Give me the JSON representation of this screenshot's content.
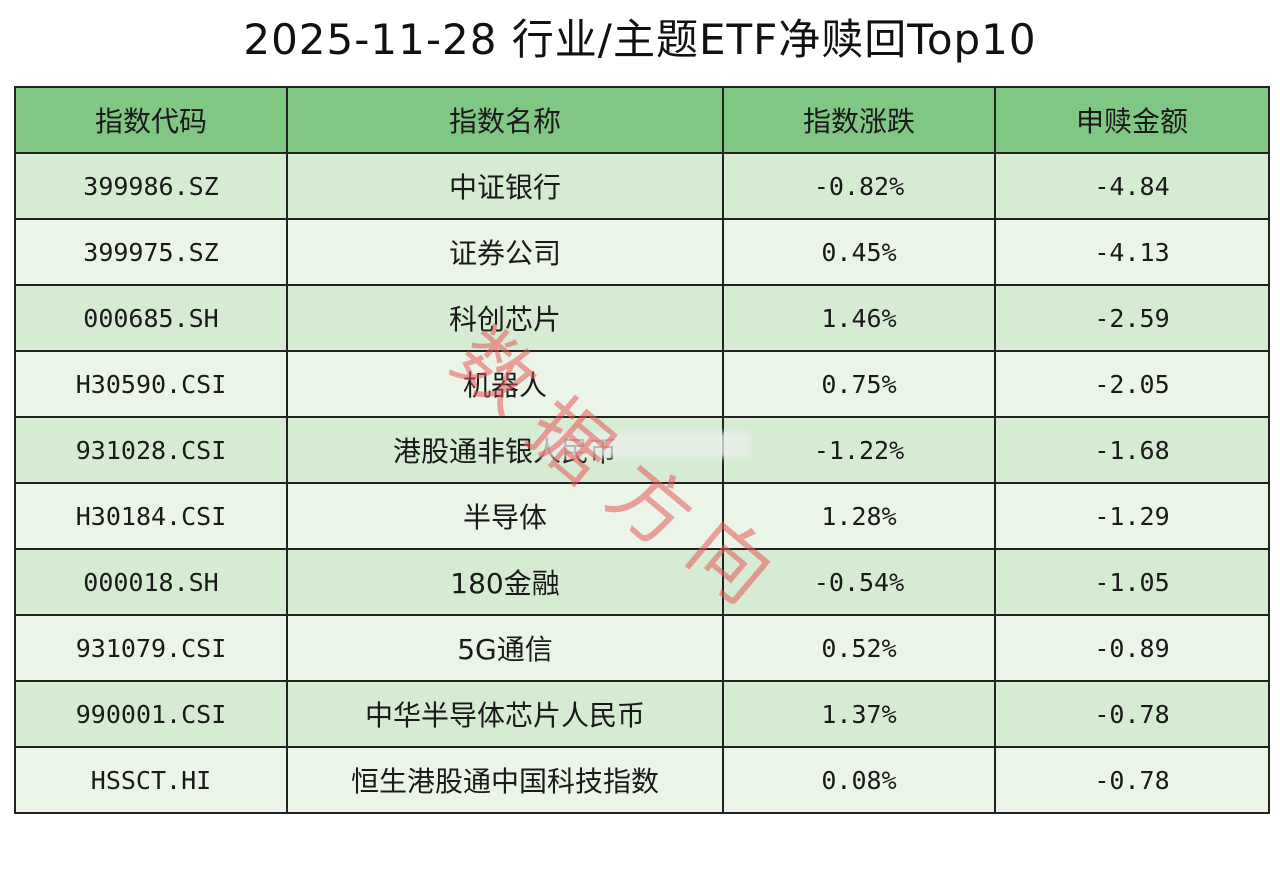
{
  "title": "2025-11-28 行业/主题ETF净赎回Top10",
  "table": {
    "headers": [
      "指数代码",
      "指数名称",
      "指数涨跌",
      "申赎金额"
    ],
    "rows": [
      {
        "code": "399986.SZ",
        "name": "中证银行",
        "change": "-0.82%",
        "amount": "-4.84"
      },
      {
        "code": "399975.SZ",
        "name": "证券公司",
        "change": "0.45%",
        "amount": "-4.13"
      },
      {
        "code": "000685.SH",
        "name": "科创芯片",
        "change": "1.46%",
        "amount": "-2.59"
      },
      {
        "code": "H30590.CSI",
        "name": "机器人",
        "change": "0.75%",
        "amount": "-2.05"
      },
      {
        "code": "931028.CSI",
        "name": "港股通非银人民币",
        "change": "-1.22%",
        "amount": "-1.68"
      },
      {
        "code": "H30184.CSI",
        "name": "半导体",
        "change": "1.28%",
        "amount": "-1.29"
      },
      {
        "code": "000018.SH",
        "name": "180金融",
        "change": "-0.54%",
        "amount": "-1.05"
      },
      {
        "code": "931079.CSI",
        "name": "5G通信",
        "change": "0.52%",
        "amount": "-0.89"
      },
      {
        "code": "990001.CSI",
        "name": "中华半导体芯片人民币",
        "change": "1.37%",
        "amount": "-0.78"
      },
      {
        "code": "HSSCT.HI",
        "name": "恒生港股通中国科技指数",
        "change": "0.08%",
        "amount": "-0.78"
      }
    ]
  },
  "watermark": {
    "chars": [
      "数",
      "据",
      "方",
      "向"
    ],
    "color": "#e85858"
  },
  "colors": {
    "header_bg": "#81c784",
    "row_odd": "#d5ecd2",
    "row_even": "#eaf5e8"
  }
}
